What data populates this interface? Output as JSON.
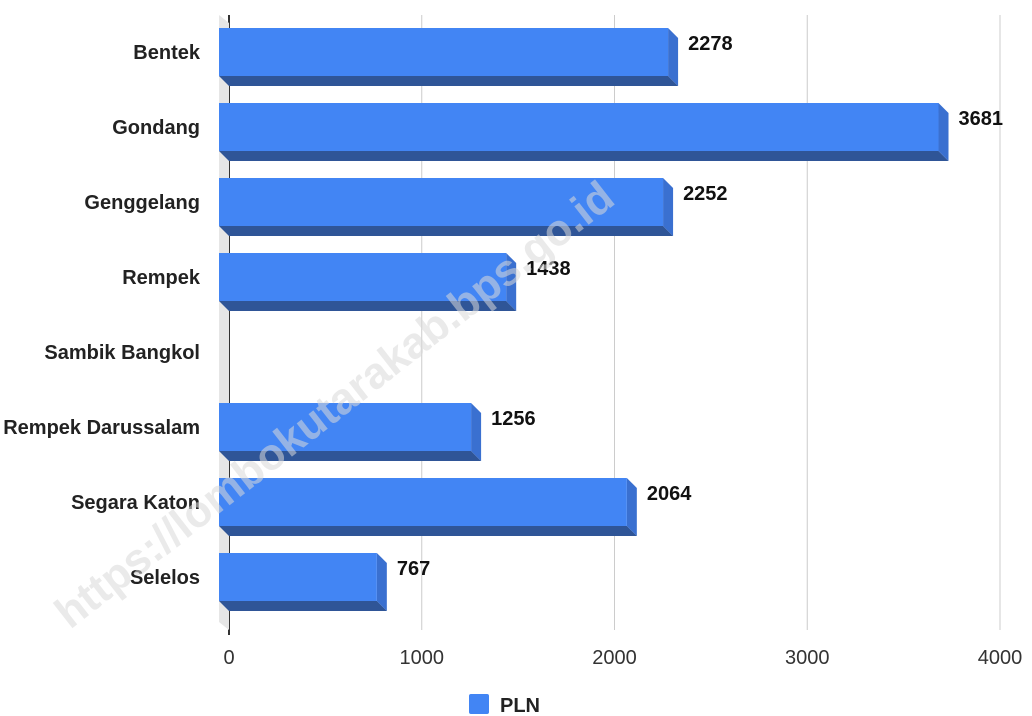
{
  "watermark": "https://lombokutarakab.bps.go.id",
  "colors": {
    "bar_front": "#4285F4",
    "bar_side": "#3a70d0",
    "bar_bottom": "#2f5597",
    "grid": "#cccccc",
    "axis": "#333333"
  },
  "chart_data": {
    "type": "bar",
    "orientation": "horizontal",
    "categories": [
      "Bentek",
      "Gondang",
      "Genggelang",
      "Rempek",
      "Sambik Bangkol",
      "Rempek Darussalam",
      "Segara Katon",
      "Selelos"
    ],
    "series": [
      {
        "name": "PLN",
        "values": [
          2278,
          3681,
          2252,
          1438,
          null,
          1256,
          2064,
          767
        ]
      }
    ],
    "data_labels": [
      "2278",
      "3681",
      "2252",
      "1438",
      "",
      "1256",
      "2064",
      "767"
    ],
    "x_ticks": [
      0,
      1000,
      2000,
      3000,
      4000
    ],
    "xlim": [
      0,
      4000
    ],
    "grid": true,
    "legend_position": "bottom",
    "title": "",
    "xlabel": "",
    "ylabel": ""
  }
}
